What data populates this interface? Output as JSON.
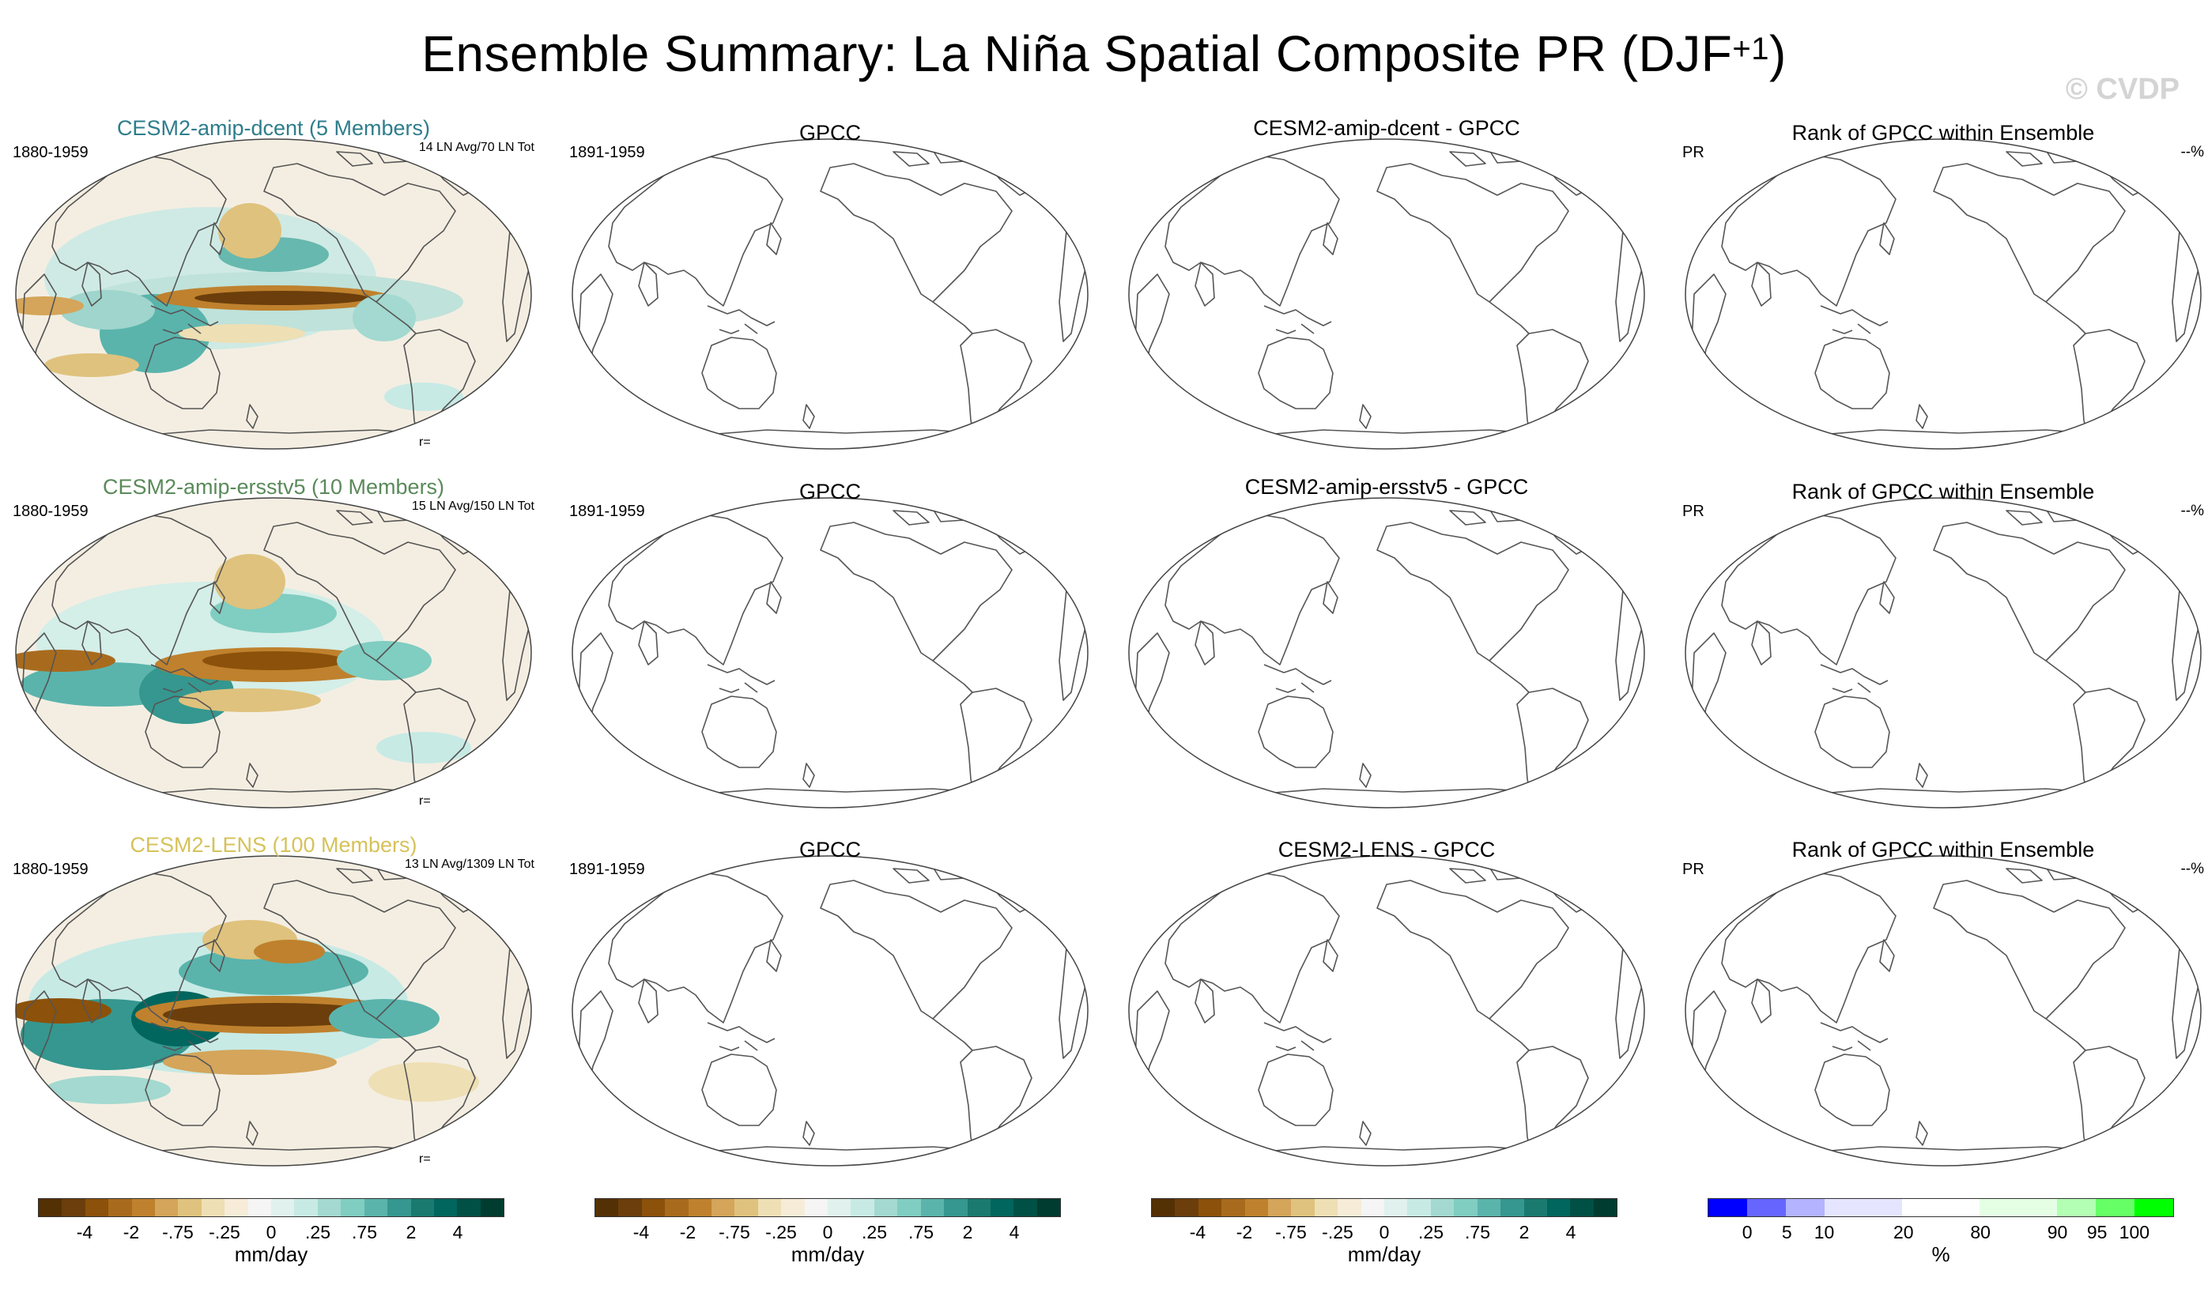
{
  "title": {
    "main": "Ensemble Summary: La Niña Spatial Composite PR (DJF",
    "sup": "+1",
    "close": ")"
  },
  "watermark": "© CVDP",
  "rows": [
    {
      "ensemble": {
        "title": "CESM2-amip-dcent (5 Members)",
        "title_color": "#2e7d8c",
        "period": "1880-1959",
        "count": "14 LN Avg/70 LN Tot",
        "r": "r="
      },
      "obs": {
        "title": "GPCC",
        "period": "1891-1959"
      },
      "diff": {
        "title": "CESM2-amip-dcent - GPCC"
      },
      "rank": {
        "title": "Rank of GPCC within Ensemble",
        "left": "PR",
        "right": "--%"
      }
    },
    {
      "ensemble": {
        "title": "CESM2-amip-ersstv5 (10 Members)",
        "title_color": "#5a8a5a",
        "period": "1880-1959",
        "count": "15 LN Avg/150 LN Tot",
        "r": "r="
      },
      "obs": {
        "title": "GPCC",
        "period": "1891-1959"
      },
      "diff": {
        "title": "CESM2-amip-ersstv5 - GPCC"
      },
      "rank": {
        "title": "Rank of GPCC within Ensemble",
        "left": "PR",
        "right": "--%"
      }
    },
    {
      "ensemble": {
        "title": "CESM2-LENS (100 Members)",
        "title_color": "#d6c25a",
        "period": "1880-1959",
        "count": "13 LN Avg/1309 LN Tot",
        "r": "r="
      },
      "obs": {
        "title": "GPCC",
        "period": "1891-1959"
      },
      "diff": {
        "title": "CESM2-LENS - GPCC"
      },
      "rank": {
        "title": "Rank of GPCC within Ensemble",
        "left": "PR",
        "right": "--%"
      }
    }
  ],
  "colorbars": {
    "pr": {
      "colors": [
        "#543005",
        "#6b3e0c",
        "#8c510a",
        "#a86b1e",
        "#bf812d",
        "#d4a55a",
        "#dfc27d",
        "#eedfb4",
        "#f6ecd8",
        "#f5f5f5",
        "#e0f1ee",
        "#c7eae5",
        "#a3d9d0",
        "#80cdc1",
        "#5ab4ac",
        "#35978f",
        "#1a7a70",
        "#01665e",
        "#005045",
        "#003c30"
      ],
      "ticks": [
        "-4",
        "-2",
        "-.75",
        "-.25",
        "0",
        ".25",
        ".75",
        "2",
        "4"
      ],
      "unit": "mm/day"
    },
    "rank": {
      "colors": [
        "#0000ff",
        "#6666ff",
        "#b3b3ff",
        "#e5e5ff",
        "#e5e5ff",
        "#ffffff",
        "#ffffff",
        "#e5ffe5",
        "#e5ffe5",
        "#b3ffb3",
        "#66ff66",
        "#00ff00"
      ],
      "ticks": [
        "0",
        "5",
        "10",
        "20",
        "80",
        "90",
        "95",
        "100"
      ],
      "unit": "%"
    }
  }
}
